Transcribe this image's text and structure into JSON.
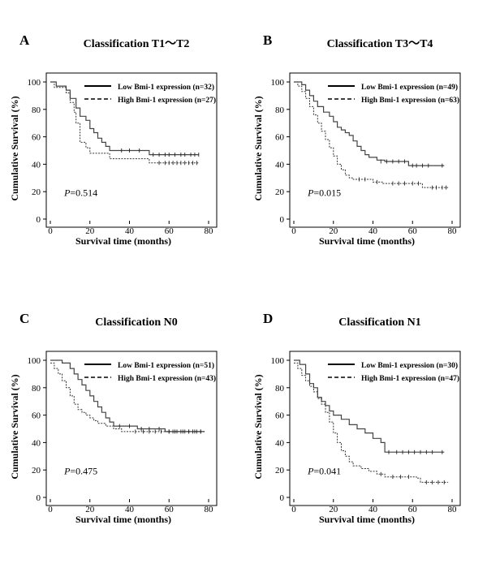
{
  "chart_data": [
    {
      "type": "line",
      "letter": "A",
      "title": "Classification T1～T2",
      "xlabel": "Survival time (months)",
      "ylabel": "Cumulative Survival (%)",
      "xlim": [
        0,
        80
      ],
      "ylim": [
        0,
        100
      ],
      "xticks": [
        "0",
        "20",
        "40",
        "60",
        "80"
      ],
      "yticks": [
        "0",
        "20",
        "40",
        "60",
        "80",
        "100"
      ],
      "pvalue_prefix": "P",
      "pvalue": "=0.514",
      "legend_position": "top-right",
      "series": [
        {
          "name": "Low Bmi-1  expression (n=32)",
          "style": "solid",
          "steps": [
            [
              0,
              100
            ],
            [
              3,
              97
            ],
            [
              8,
              94
            ],
            [
              10,
              88
            ],
            [
              13,
              81
            ],
            [
              15,
              75
            ],
            [
              18,
              72
            ],
            [
              20,
              66
            ],
            [
              22,
              63
            ],
            [
              24,
              59
            ],
            [
              26,
              56
            ],
            [
              28,
              53
            ],
            [
              30,
              50
            ],
            [
              34,
              50
            ],
            [
              38,
              50
            ],
            [
              50,
              47
            ],
            [
              75,
              47
            ]
          ],
          "censored": [
            [
              36,
              50
            ],
            [
              40,
              50
            ],
            [
              45,
              50
            ],
            [
              52,
              47
            ],
            [
              55,
              47
            ],
            [
              58,
              47
            ],
            [
              60,
              47
            ],
            [
              63,
              47
            ],
            [
              66,
              47
            ],
            [
              68,
              47
            ],
            [
              71,
              47
            ],
            [
              73,
              47
            ],
            [
              75,
              47
            ]
          ]
        },
        {
          "name": "High Bmi-1  expression (n=27)",
          "style": "dashed",
          "steps": [
            [
              0,
              100
            ],
            [
              2,
              96
            ],
            [
              8,
              92
            ],
            [
              10,
              85
            ],
            [
              12,
              78
            ],
            [
              13,
              70
            ],
            [
              15,
              56
            ],
            [
              18,
              52
            ],
            [
              20,
              48
            ],
            [
              28,
              48
            ],
            [
              30,
              44
            ],
            [
              38,
              44
            ],
            [
              50,
              41
            ],
            [
              75,
              41
            ]
          ],
          "censored": [
            [
              55,
              41
            ],
            [
              58,
              41
            ],
            [
              60,
              41
            ],
            [
              62,
              41
            ],
            [
              64,
              41
            ],
            [
              66,
              41
            ],
            [
              68,
              41
            ],
            [
              70,
              41
            ],
            [
              72,
              41
            ],
            [
              74,
              41
            ]
          ]
        }
      ]
    },
    {
      "type": "line",
      "letter": "B",
      "title": "Classification T3～T4",
      "xlabel": "Survival time (months)",
      "ylabel": "Cumulative Survival (%)",
      "xlim": [
        0,
        80
      ],
      "ylim": [
        0,
        100
      ],
      "xticks": [
        "0",
        "20",
        "40",
        "60",
        "80"
      ],
      "yticks": [
        "0",
        "20",
        "40",
        "60",
        "80",
        "100"
      ],
      "pvalue_prefix": "P",
      "pvalue": "=0.015",
      "legend_position": "top-right",
      "series": [
        {
          "name": "Low Bmi-1  expression (n=49)",
          "style": "solid",
          "steps": [
            [
              0,
              100
            ],
            [
              4,
              98
            ],
            [
              6,
              94
            ],
            [
              8,
              90
            ],
            [
              10,
              86
            ],
            [
              12,
              82
            ],
            [
              15,
              78
            ],
            [
              18,
              75
            ],
            [
              20,
              71
            ],
            [
              22,
              67
            ],
            [
              24,
              65
            ],
            [
              26,
              63
            ],
            [
              28,
              61
            ],
            [
              30,
              57
            ],
            [
              32,
              53
            ],
            [
              34,
              50
            ],
            [
              36,
              47
            ],
            [
              38,
              45
            ],
            [
              42,
              43
            ],
            [
              46,
              42
            ],
            [
              58,
              39
            ],
            [
              76,
              39
            ]
          ],
          "censored": [
            [
              44,
              42
            ],
            [
              47,
              42
            ],
            [
              50,
              42
            ],
            [
              53,
              42
            ],
            [
              56,
              42
            ],
            [
              60,
              39
            ],
            [
              62,
              39
            ],
            [
              65,
              39
            ],
            [
              68,
              39
            ],
            [
              75,
              39
            ]
          ]
        },
        {
          "name": "High Bmi-1  expression (n=63)",
          "style": "dashed",
          "steps": [
            [
              0,
              100
            ],
            [
              2,
              97
            ],
            [
              4,
              93
            ],
            [
              6,
              88
            ],
            [
              8,
              82
            ],
            [
              10,
              76
            ],
            [
              12,
              70
            ],
            [
              14,
              64
            ],
            [
              16,
              58
            ],
            [
              18,
              52
            ],
            [
              20,
              46
            ],
            [
              22,
              40
            ],
            [
              24,
              36
            ],
            [
              26,
              32
            ],
            [
              28,
              30
            ],
            [
              30,
              29
            ],
            [
              40,
              27
            ],
            [
              45,
              26
            ],
            [
              65,
              23
            ],
            [
              78,
              23
            ]
          ],
          "censored": [
            [
              33,
              29
            ],
            [
              36,
              29
            ],
            [
              42,
              27
            ],
            [
              50,
              26
            ],
            [
              53,
              26
            ],
            [
              56,
              26
            ],
            [
              60,
              26
            ],
            [
              63,
              26
            ],
            [
              70,
              23
            ],
            [
              72,
              23
            ],
            [
              75,
              23
            ],
            [
              77,
              23
            ]
          ]
        }
      ]
    },
    {
      "type": "line",
      "letter": "C",
      "title": "Classification N0",
      "xlabel": "Survival time (months)",
      "ylabel": "Cumulative Survival (%)",
      "xlim": [
        0,
        80
      ],
      "ylim": [
        0,
        100
      ],
      "xticks": [
        "0",
        "20",
        "40",
        "60",
        "80"
      ],
      "yticks": [
        "0",
        "20",
        "40",
        "60",
        "80",
        "100"
      ],
      "pvalue_prefix": "P",
      "pvalue": "=0.475",
      "legend_position": "top-right",
      "series": [
        {
          "name": "Low Bmi-1  expression (n=51)",
          "style": "solid",
          "steps": [
            [
              0,
              100
            ],
            [
              6,
              98
            ],
            [
              10,
              94
            ],
            [
              12,
              90
            ],
            [
              14,
              86
            ],
            [
              16,
              82
            ],
            [
              18,
              78
            ],
            [
              20,
              74
            ],
            [
              22,
              70
            ],
            [
              24,
              66
            ],
            [
              26,
              62
            ],
            [
              28,
              58
            ],
            [
              30,
              55
            ],
            [
              32,
              52
            ],
            [
              38,
              52
            ],
            [
              44,
              50
            ],
            [
              58,
              48
            ],
            [
              78,
              48
            ]
          ],
          "censored": [
            [
              35,
              52
            ],
            [
              40,
              52
            ],
            [
              46,
              50
            ],
            [
              50,
              50
            ],
            [
              55,
              50
            ],
            [
              60,
              48
            ],
            [
              62,
              48
            ],
            [
              64,
              48
            ],
            [
              66,
              48
            ],
            [
              68,
              48
            ],
            [
              70,
              48
            ],
            [
              72,
              48
            ],
            [
              74,
              48
            ],
            [
              76,
              48
            ]
          ]
        },
        {
          "name": "High Bmi-1  expression (n=43)",
          "style": "dashed",
          "steps": [
            [
              0,
              98
            ],
            [
              2,
              94
            ],
            [
              4,
              90
            ],
            [
              6,
              85
            ],
            [
              8,
              80
            ],
            [
              10,
              74
            ],
            [
              12,
              68
            ],
            [
              14,
              64
            ],
            [
              16,
              62
            ],
            [
              18,
              60
            ],
            [
              20,
              58
            ],
            [
              22,
              56
            ],
            [
              24,
              54
            ],
            [
              28,
              52
            ],
            [
              32,
              50
            ],
            [
              36,
              48
            ],
            [
              40,
              48
            ],
            [
              60,
              48
            ],
            [
              78,
              48
            ]
          ],
          "censored": [
            [
              43,
              48
            ],
            [
              47,
              48
            ],
            [
              50,
              48
            ],
            [
              53,
              48
            ],
            [
              56,
              48
            ],
            [
              60,
              48
            ],
            [
              63,
              48
            ],
            [
              67,
              48
            ],
            [
              70,
              48
            ],
            [
              73,
              48
            ],
            [
              76,
              48
            ]
          ]
        }
      ]
    },
    {
      "type": "line",
      "letter": "D",
      "title": "Classification N1",
      "xlabel": "Survival time (months)",
      "ylabel": "Cumulative Survival (%)",
      "xlim": [
        0,
        80
      ],
      "ylim": [
        0,
        100
      ],
      "xticks": [
        "0",
        "20",
        "40",
        "60",
        "80"
      ],
      "yticks": [
        "0",
        "20",
        "40",
        "60",
        "80",
        "100"
      ],
      "pvalue_prefix": "P",
      "pvalue": "=0.041",
      "legend_position": "top-right",
      "series": [
        {
          "name": "Low Bmi-1  expression (n=30)",
          "style": "solid",
          "steps": [
            [
              0,
              100
            ],
            [
              3,
              97
            ],
            [
              6,
              90
            ],
            [
              8,
              83
            ],
            [
              10,
              80
            ],
            [
              12,
              73
            ],
            [
              14,
              70
            ],
            [
              16,
              67
            ],
            [
              18,
              63
            ],
            [
              20,
              60
            ],
            [
              24,
              57
            ],
            [
              28,
              53
            ],
            [
              32,
              50
            ],
            [
              36,
              47
            ],
            [
              40,
              43
            ],
            [
              44,
              40
            ],
            [
              46,
              33
            ],
            [
              76,
              33
            ]
          ],
          "censored": [
            [
              48,
              33
            ],
            [
              52,
              33
            ],
            [
              55,
              33
            ],
            [
              58,
              33
            ],
            [
              61,
              33
            ],
            [
              64,
              33
            ],
            [
              67,
              33
            ],
            [
              70,
              33
            ],
            [
              75,
              33
            ]
          ]
        },
        {
          "name": "High Bmi-1  expression (n=47)",
          "style": "dashed",
          "steps": [
            [
              0,
              98
            ],
            [
              2,
              94
            ],
            [
              4,
              89
            ],
            [
              6,
              85
            ],
            [
              8,
              81
            ],
            [
              10,
              77
            ],
            [
              12,
              72
            ],
            [
              14,
              68
            ],
            [
              16,
              62
            ],
            [
              18,
              55
            ],
            [
              20,
              47
            ],
            [
              22,
              40
            ],
            [
              24,
              34
            ],
            [
              26,
              30
            ],
            [
              28,
              26
            ],
            [
              30,
              23
            ],
            [
              34,
              21
            ],
            [
              38,
              19
            ],
            [
              42,
              17
            ],
            [
              46,
              15
            ],
            [
              62,
              14
            ],
            [
              64,
              11
            ],
            [
              78,
              11
            ]
          ],
          "censored": [
            [
              44,
              17
            ],
            [
              50,
              15
            ],
            [
              54,
              15
            ],
            [
              58,
              15
            ],
            [
              67,
              11
            ],
            [
              70,
              11
            ],
            [
              73,
              11
            ],
            [
              76,
              11
            ]
          ]
        }
      ]
    }
  ]
}
